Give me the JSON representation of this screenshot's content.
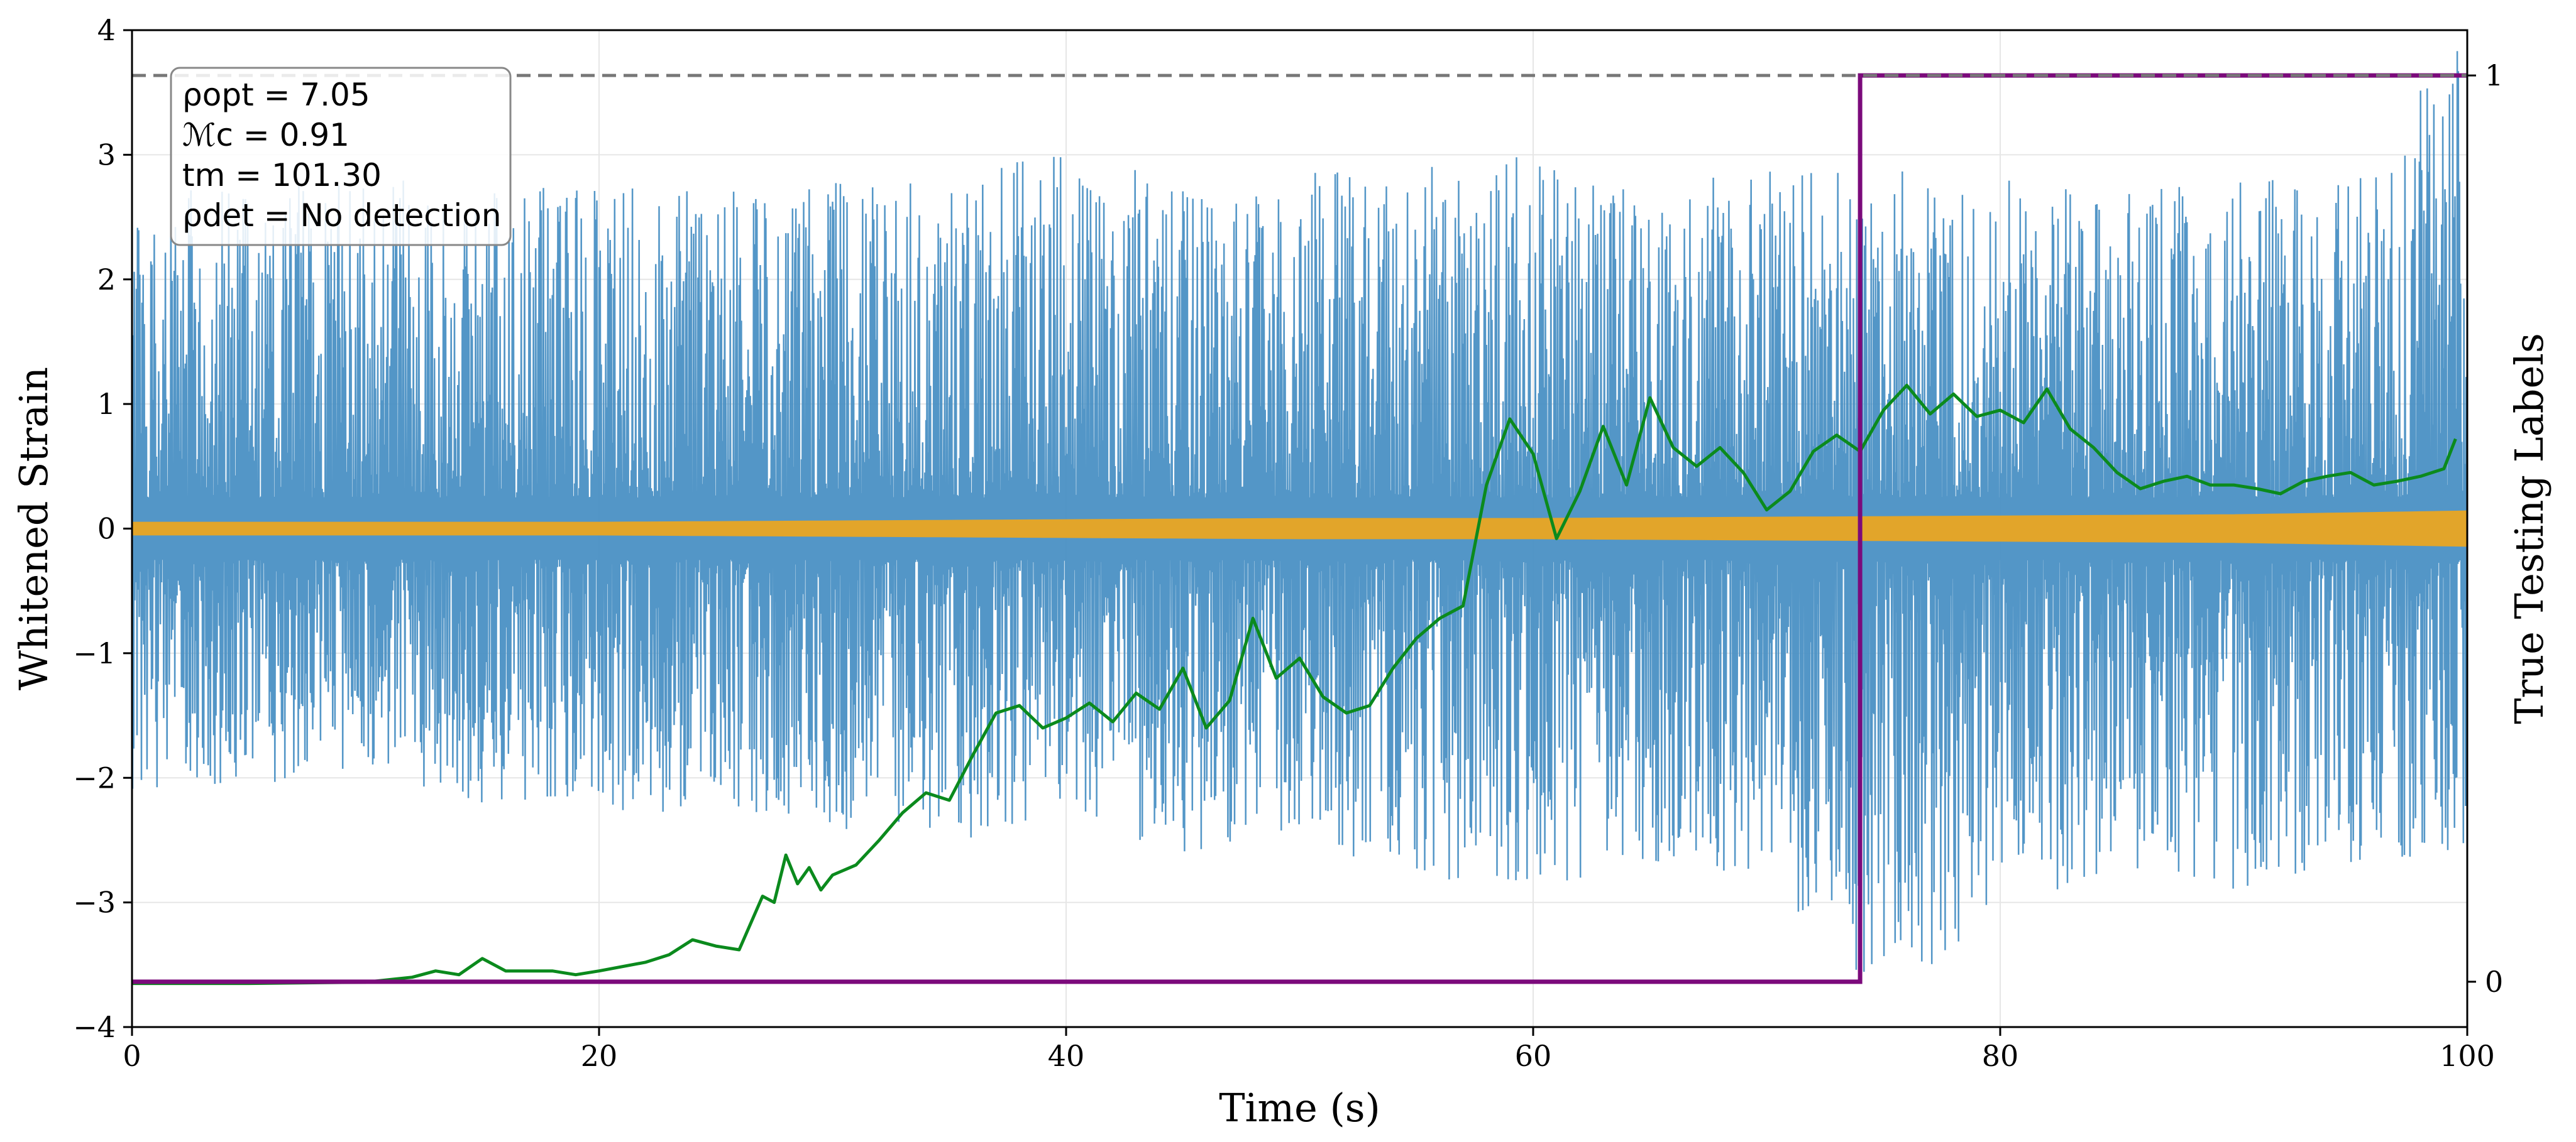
{
  "chart_data": {
    "type": "line",
    "xlabel": "Time (s)",
    "ylabel": "Whitened Strain",
    "ylabel_right": "True Testing Labels",
    "xlim": [
      0,
      100
    ],
    "ylim": [
      -4,
      4
    ],
    "ylim_right": [
      -0.05,
      1.05
    ],
    "x_ticks": [
      "0",
      "20",
      "40",
      "60",
      "80",
      "100"
    ],
    "y_ticks": [
      "−4",
      "−3",
      "−2",
      "−1",
      "0",
      "1",
      "2",
      "3",
      "4"
    ],
    "y_right_ticks": [
      "0",
      "1"
    ],
    "grid": true,
    "annotation": {
      "lines": [
        "ρopt = 7.05",
        "ℳc = 0.91",
        "tm = 101.30",
        "ρdet = No detection"
      ],
      "placement": "top-left"
    },
    "colors": {
      "strain": "#4a90c4",
      "injected_signal": "#e2a52a",
      "prediction": "#0b8a1d",
      "label": "#7b0a7b",
      "threshold": "#777777"
    },
    "series": [
      {
        "role": "whitened-strain",
        "envelope": {
          "x": [
            0,
            10,
            15,
            20,
            25,
            30,
            35,
            40,
            45,
            50,
            55,
            60,
            65,
            70,
            75,
            80,
            85,
            90,
            95,
            100
          ],
          "upper": [
            2.7,
            2.9,
            2.7,
            2.8,
            2.7,
            2.8,
            2.9,
            3.0,
            2.8,
            2.9,
            2.9,
            3.0,
            2.8,
            2.9,
            2.9,
            2.8,
            2.7,
            2.8,
            2.8,
            4.0
          ],
          "lower": [
            -2.1,
            -2.0,
            -2.2,
            -2.3,
            -2.3,
            -2.4,
            -2.5,
            -2.4,
            -2.6,
            -2.5,
            -2.8,
            -2.9,
            -2.7,
            -2.8,
            -4.0,
            -3.0,
            -2.8,
            -2.9,
            -2.7,
            -2.6
          ]
        }
      },
      {
        "role": "injected-signal",
        "x": [
          0,
          20,
          30,
          40,
          50,
          60,
          70,
          80,
          90,
          100
        ],
        "amplitude": [
          0.05,
          0.05,
          0.06,
          0.07,
          0.08,
          0.08,
          0.09,
          0.1,
          0.11,
          0.14
        ]
      },
      {
        "role": "model-prediction",
        "x": [
          0,
          5,
          10,
          12,
          13,
          14,
          15,
          16,
          18,
          19,
          20,
          22,
          23,
          24,
          25,
          26,
          27,
          27.5,
          28,
          28.5,
          29,
          29.5,
          30,
          31,
          32,
          33,
          34,
          35,
          36,
          37,
          38,
          39,
          40,
          41,
          42,
          43,
          44,
          45,
          46,
          47,
          48,
          49,
          50,
          51,
          52,
          53,
          54,
          55,
          56,
          57,
          58,
          59,
          60,
          61,
          62,
          63,
          64,
          65,
          66,
          67,
          68,
          69,
          70,
          71,
          72,
          73,
          74,
          75,
          76,
          77,
          78,
          79,
          80,
          81,
          82,
          83,
          84,
          85,
          86,
          87,
          88,
          89,
          90,
          91,
          92,
          93,
          94,
          95,
          96,
          97,
          98,
          99,
          99.5
        ],
        "y": [
          -3.65,
          -3.65,
          -3.64,
          -3.6,
          -3.55,
          -3.58,
          -3.45,
          -3.55,
          -3.55,
          -3.58,
          -3.55,
          -3.48,
          -3.42,
          -3.3,
          -3.35,
          -3.38,
          -2.95,
          -3.0,
          -2.62,
          -2.85,
          -2.72,
          -2.9,
          -2.78,
          -2.7,
          -2.5,
          -2.28,
          -2.12,
          -2.18,
          -1.82,
          -1.48,
          -1.42,
          -1.6,
          -1.52,
          -1.4,
          -1.55,
          -1.32,
          -1.45,
          -1.12,
          -1.6,
          -1.38,
          -0.72,
          -1.2,
          -1.04,
          -1.35,
          -1.48,
          -1.42,
          -1.12,
          -0.88,
          -0.72,
          -0.62,
          0.35,
          0.88,
          0.6,
          -0.08,
          0.3,
          0.82,
          0.35,
          1.05,
          0.65,
          0.5,
          0.65,
          0.45,
          0.15,
          0.3,
          0.62,
          0.75,
          0.62,
          0.95,
          1.15,
          0.92,
          1.08,
          0.9,
          0.95,
          0.85,
          1.12,
          0.8,
          0.65,
          0.45,
          0.32,
          0.38,
          0.42,
          0.35,
          0.35,
          0.32,
          0.28,
          0.38,
          0.42,
          0.45,
          0.35,
          0.38,
          0.42,
          0.48,
          0.72
        ]
      },
      {
        "role": "true-label",
        "x": [
          0,
          74,
          74,
          100
        ],
        "y": [
          0,
          0,
          1,
          1
        ]
      }
    ],
    "threshold_line": {
      "y_right": 1,
      "style": "dashed"
    }
  }
}
